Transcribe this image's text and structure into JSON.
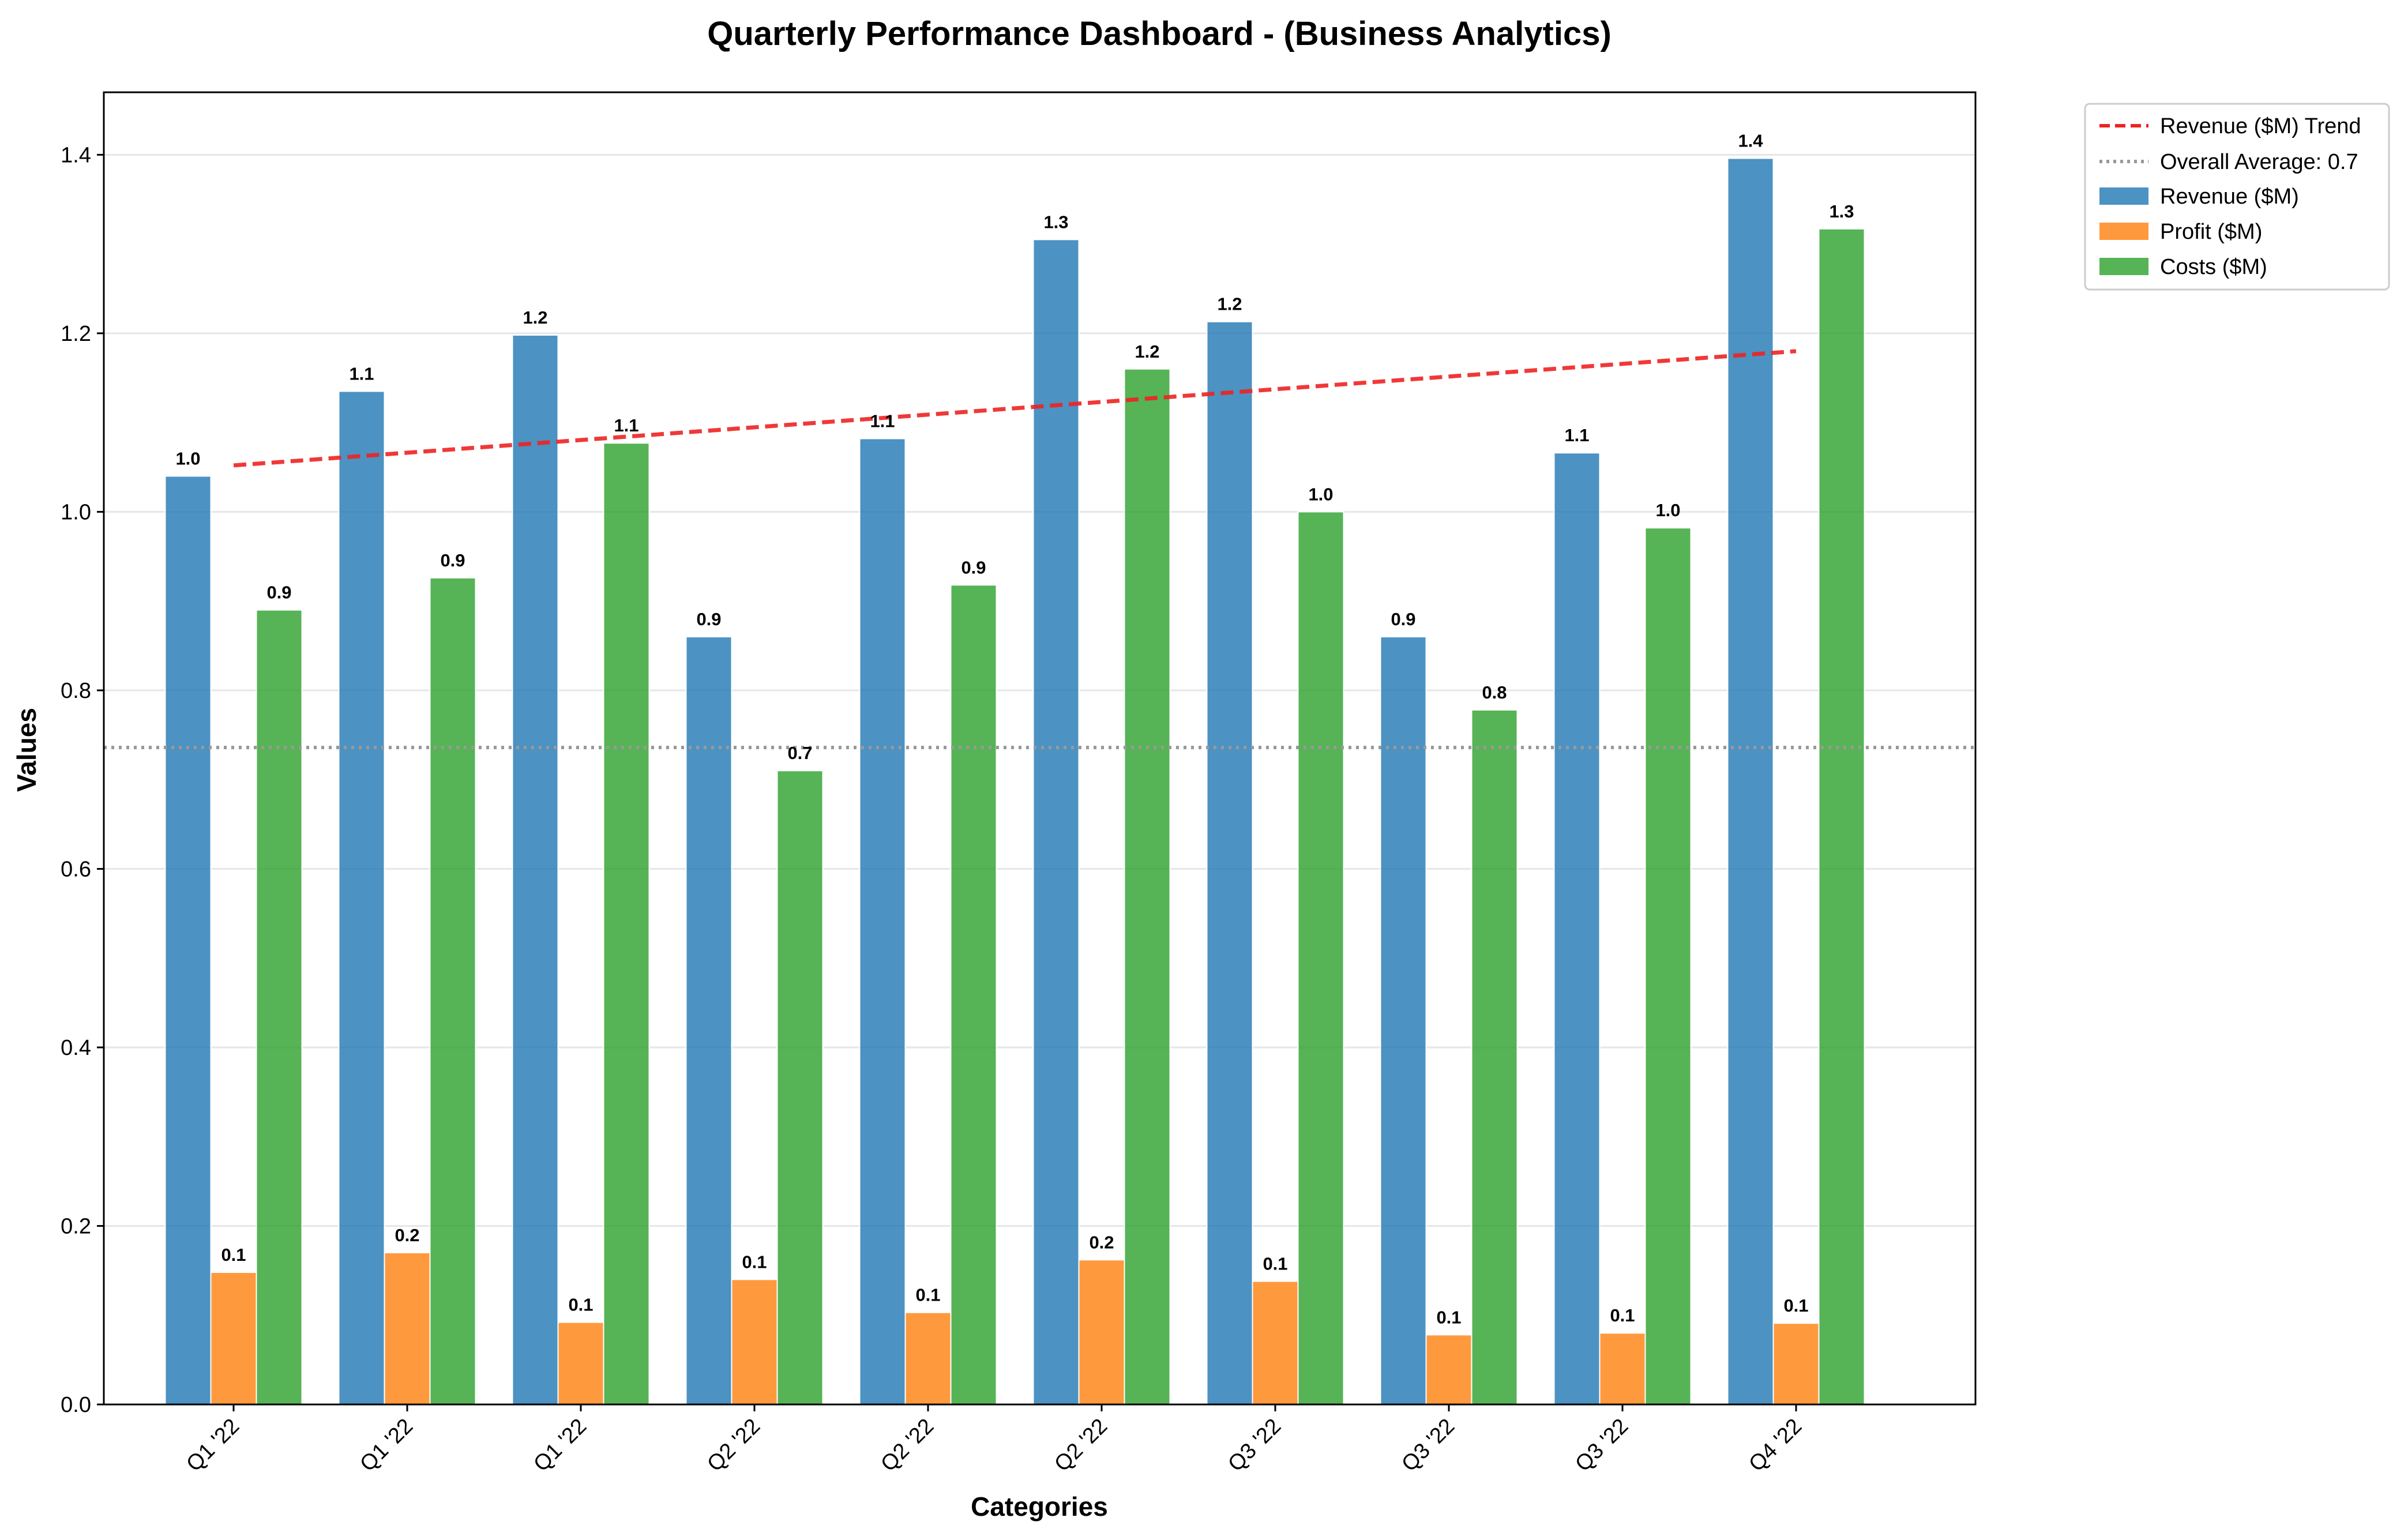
{
  "chart_data": {
    "type": "bar",
    "title": "Quarterly Performance Dashboard - (Business Analytics)",
    "xlabel": "Categories",
    "ylabel": "Values",
    "ylim": [
      0,
      1.47
    ],
    "yticks": [
      "0.0",
      "0.2",
      "0.4",
      "0.6",
      "0.8",
      "1.0",
      "1.2",
      "1.4"
    ],
    "categories": [
      "Q1 '22",
      "Q1 '22",
      "Q1 '22",
      "Q2 '22",
      "Q2 '22",
      "Q2 '22",
      "Q3 '22",
      "Q3 '22",
      "Q3 '22",
      "Q4 '22"
    ],
    "series": [
      {
        "name": "Revenue ($M)",
        "color": "#1f77b4",
        "values": [
          1.04,
          1.135,
          1.198,
          0.86,
          1.082,
          1.305,
          1.213,
          0.86,
          1.066,
          1.396
        ],
        "labels": [
          "1.0",
          "1.1",
          "1.2",
          "0.9",
          "1.1",
          "1.3",
          "1.2",
          "0.9",
          "1.1",
          "1.4"
        ]
      },
      {
        "name": "Profit ($M)",
        "color": "#ff7f0e",
        "values": [
          0.148,
          0.17,
          0.092,
          0.14,
          0.103,
          0.162,
          0.138,
          0.078,
          0.08,
          0.091
        ],
        "labels": [
          "0.1",
          "0.2",
          "0.1",
          "0.1",
          "0.1",
          "0.2",
          "0.1",
          "0.1",
          "0.1",
          "0.1"
        ]
      },
      {
        "name": "Costs ($M)",
        "color": "#2ca02c",
        "values": [
          0.89,
          0.926,
          1.077,
          0.71,
          0.918,
          1.16,
          1.0,
          0.778,
          0.982,
          1.317
        ],
        "labels": [
          "0.9",
          "0.9",
          "1.1",
          "0.7",
          "0.9",
          "1.2",
          "1.0",
          "0.8",
          "1.0",
          "1.3"
        ]
      }
    ],
    "trend": {
      "name": "Revenue ($M) Trend",
      "color": "#ee2222",
      "start": 1.052,
      "end": 1.18
    },
    "average": {
      "name": "Overall Average: 0.7",
      "value": 0.736,
      "color": "#999999"
    },
    "legend_position": "top-right",
    "grid": "y"
  }
}
